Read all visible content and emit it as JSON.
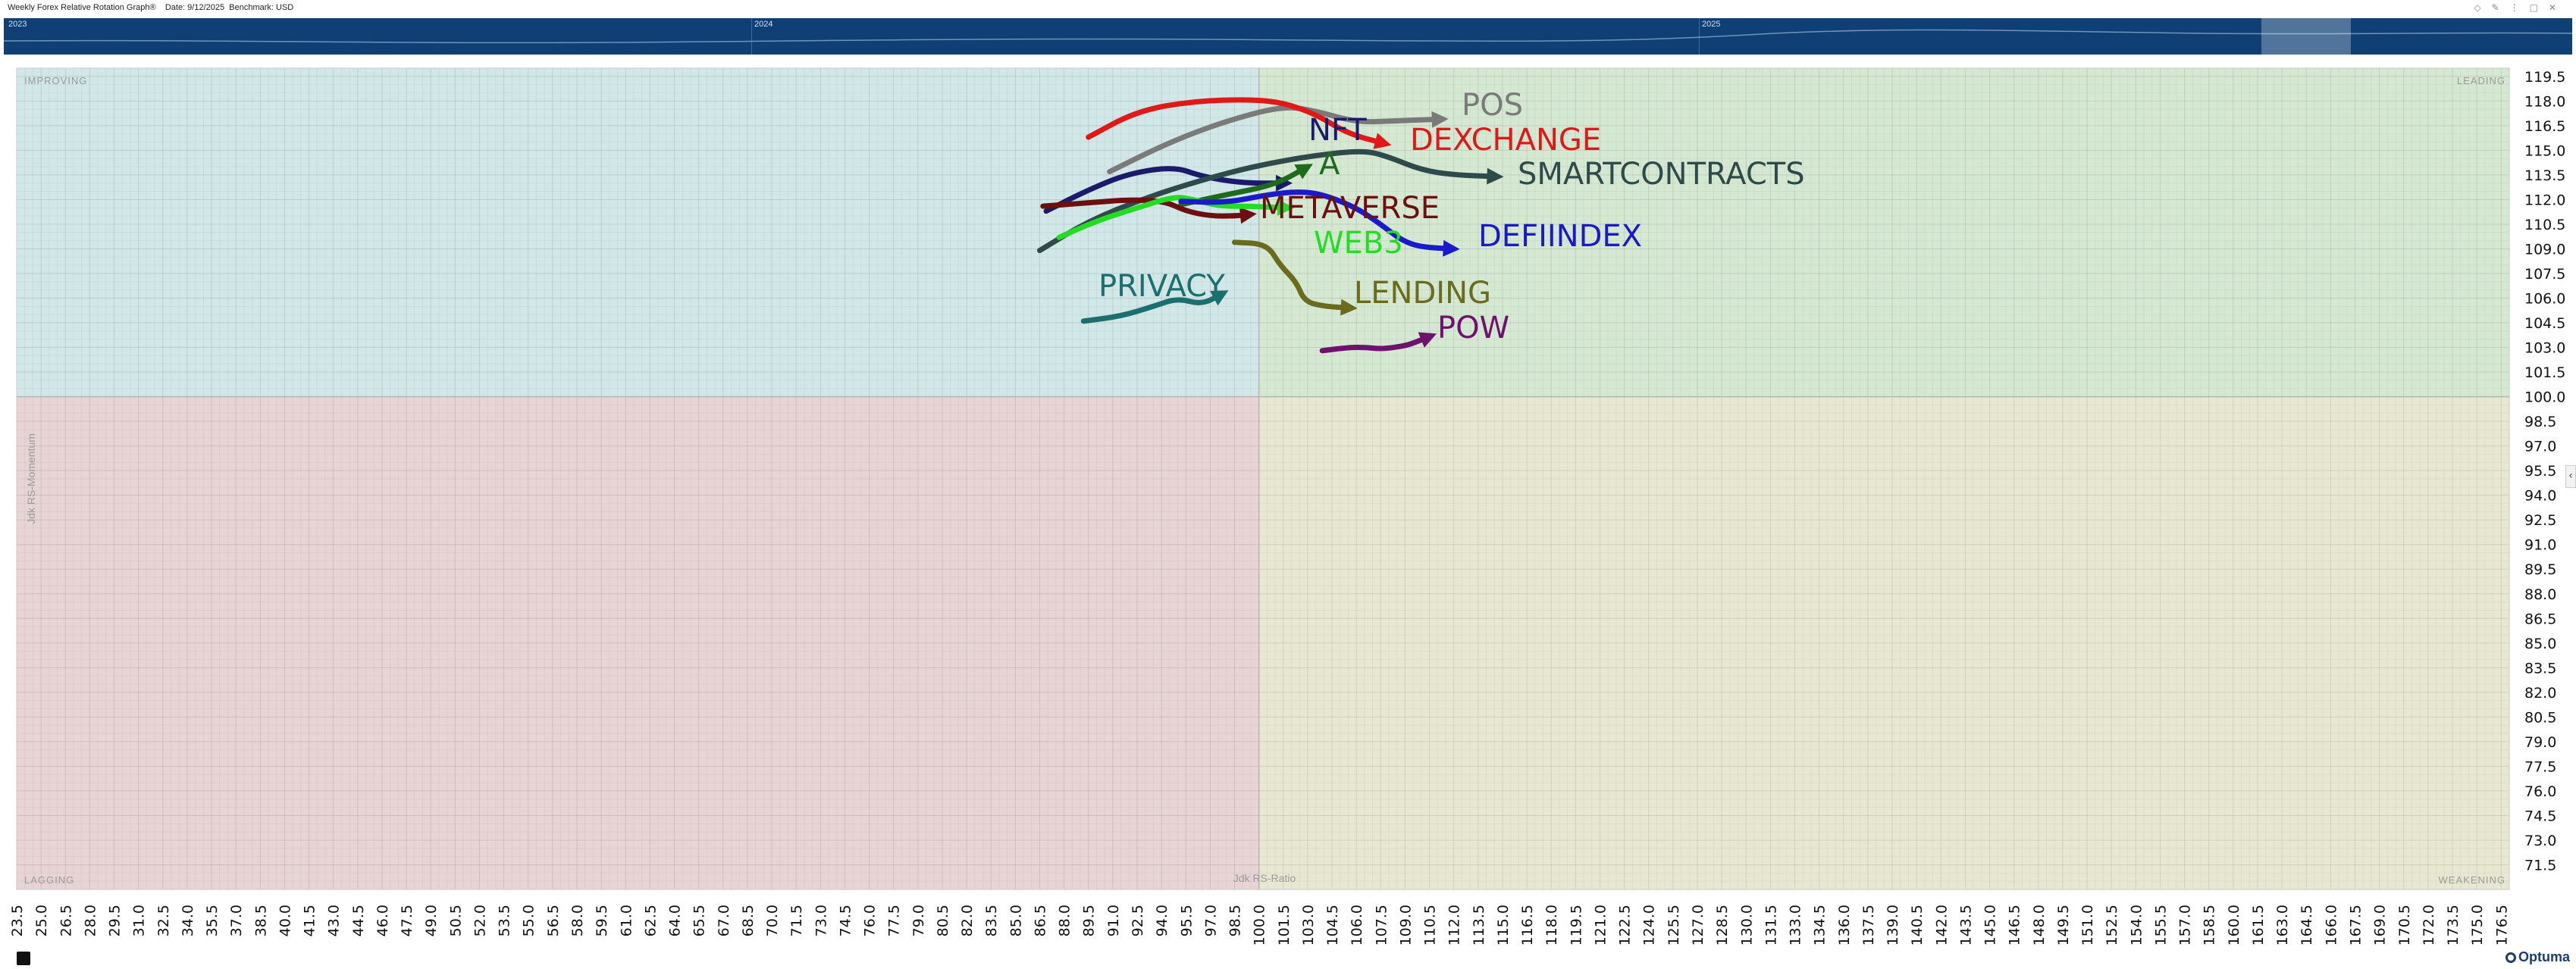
{
  "header": {
    "title": "Weekly Forex Relative Rotation Graph®",
    "date_label": "Date: 9/12/2025",
    "benchmark_label": "Benchmark: USD"
  },
  "navigator": {
    "years": [
      "2023",
      "2024",
      "2025"
    ],
    "background_color": "#0f3f74"
  },
  "logo": {
    "text": "Optuma"
  },
  "chart_data": {
    "type": "scatter",
    "subtype": "relative-rotation-graph",
    "xlabel": "Jdk RS-Ratio",
    "ylabel": "Jdk RS-Momentum",
    "xlim": [
      23.5,
      177.0
    ],
    "ylim": [
      70.0,
      120.0
    ],
    "x_ticks": [
      23.5,
      25.0,
      26.5,
      28.0,
      29.5,
      31.0,
      32.5,
      34.0,
      35.5,
      37.0,
      38.5,
      40.0,
      41.5,
      43.0,
      44.5,
      46.0,
      47.5,
      49.0,
      50.5,
      52.0,
      53.5,
      55.0,
      56.5,
      58.0,
      59.5,
      61.0,
      62.5,
      64.0,
      65.5,
      67.0,
      68.5,
      70.0,
      71.5,
      73.0,
      74.5,
      76.0,
      77.5,
      79.0,
      80.5,
      82.0,
      83.5,
      85.0,
      86.5,
      88.0,
      89.5,
      91.0,
      92.5,
      94.0,
      95.5,
      97.0,
      98.5,
      100.0,
      101.5,
      103.0,
      104.5,
      106.0,
      107.5,
      109.0,
      110.5,
      112.0,
      113.5,
      115.0,
      116.5,
      118.0,
      119.5,
      121.0,
      122.5,
      124.0,
      125.5,
      127.0,
      128.5,
      130.0,
      131.5,
      133.0,
      134.5,
      136.0,
      137.5,
      139.0,
      140.5,
      142.0,
      143.5,
      145.0,
      146.5,
      148.0,
      149.5,
      151.0,
      152.5,
      154.0,
      155.5,
      157.0,
      158.5,
      160.0,
      161.5,
      163.0,
      164.5,
      166.0,
      167.5,
      169.0,
      170.5,
      172.0,
      173.5,
      175.0,
      176.5
    ],
    "y_ticks": [
      119.5,
      118.0,
      116.5,
      115.0,
      113.5,
      112.0,
      110.5,
      109.0,
      107.5,
      106.0,
      104.5,
      103.0,
      101.5,
      100.0,
      98.5,
      97.0,
      95.5,
      94.0,
      92.5,
      91.0,
      89.5,
      88.0,
      86.5,
      85.0,
      83.5,
      82.0,
      80.5,
      79.0,
      77.5,
      76.0,
      74.5,
      73.0,
      71.5
    ],
    "center": [
      100.0,
      100.0
    ],
    "grid": true,
    "quadrants": [
      {
        "name": "IMPROVING",
        "color": "#d2e7e7"
      },
      {
        "name": "LEADING",
        "color": "#d5e8d2"
      },
      {
        "name": "LAGGING",
        "color": "#e8d4d4"
      },
      {
        "name": "WEAKENING",
        "color": "#e8e8d2"
      }
    ],
    "series": [
      {
        "name": "POS",
        "color": "#7a7a7a",
        "points": [
          [
            90.8,
            113.7
          ],
          [
            94.5,
            115.5
          ],
          [
            98.0,
            116.8
          ],
          [
            101.5,
            117.7
          ],
          [
            103.5,
            117.4
          ],
          [
            106.0,
            116.7
          ],
          [
            108.5,
            116.8
          ],
          [
            111.3,
            116.9
          ]
        ]
      },
      {
        "name": "NFT",
        "color": "#1b1b6e",
        "points": [
          [
            86.9,
            111.3
          ],
          [
            89.5,
            112.6
          ],
          [
            92.0,
            113.6
          ],
          [
            94.8,
            114.0
          ],
          [
            96.5,
            113.4
          ],
          [
            99.0,
            113.0
          ],
          [
            101.7,
            113.0
          ]
        ]
      },
      {
        "name": "DEXCHANGE",
        "color": "#e01818",
        "points": [
          [
            89.5,
            115.8
          ],
          [
            92.5,
            117.4
          ],
          [
            96.0,
            118.0
          ],
          [
            99.5,
            118.1
          ],
          [
            101.5,
            117.9
          ],
          [
            103.5,
            117.2
          ],
          [
            105.5,
            116.0
          ],
          [
            107.8,
            115.4
          ]
        ]
      },
      {
        "name": "A",
        "color": "#1e6b1e",
        "points": [
          [
            95.2,
            111.7
          ],
          [
            98.0,
            112.3
          ],
          [
            101.0,
            112.9
          ],
          [
            103.0,
            114.0
          ]
        ]
      },
      {
        "name": "SMARTCONTRACTS",
        "color": "#2f4a4a",
        "points": [
          [
            86.5,
            108.9
          ],
          [
            89.5,
            110.7
          ],
          [
            93.0,
            112.1
          ],
          [
            96.5,
            113.2
          ],
          [
            100.0,
            114.1
          ],
          [
            103.5,
            114.7
          ],
          [
            106.5,
            115.0
          ],
          [
            108.0,
            114.6
          ],
          [
            110.0,
            113.8
          ],
          [
            112.0,
            113.5
          ],
          [
            114.7,
            113.4
          ]
        ]
      },
      {
        "name": "METAVERSE",
        "color": "#6e0f0f",
        "points": [
          [
            86.7,
            111.6
          ],
          [
            89.5,
            111.8
          ],
          [
            92.0,
            112.0
          ],
          [
            94.2,
            111.9
          ],
          [
            95.5,
            111.3
          ],
          [
            97.0,
            111.0
          ],
          [
            98.5,
            111.0
          ],
          [
            99.5,
            111.1
          ]
        ]
      },
      {
        "name": "WEB3",
        "color": "#22dd22",
        "points": [
          [
            87.7,
            109.7
          ],
          [
            90.0,
            110.7
          ],
          [
            92.5,
            111.5
          ],
          [
            94.8,
            112.2
          ],
          [
            96.0,
            112.0
          ],
          [
            97.5,
            111.6
          ],
          [
            99.3,
            111.6
          ],
          [
            101.8,
            111.5
          ]
        ]
      },
      {
        "name": "DEFIINDEX",
        "color": "#1a1acc",
        "points": [
          [
            95.2,
            111.9
          ],
          [
            98.0,
            111.8
          ],
          [
            100.5,
            112.3
          ],
          [
            102.5,
            112.5
          ],
          [
            104.0,
            112.3
          ],
          [
            106.0,
            111.5
          ],
          [
            107.5,
            110.5
          ],
          [
            108.8,
            109.5
          ],
          [
            110.0,
            109.1
          ],
          [
            112.0,
            109.0
          ]
        ]
      },
      {
        "name": "PRIVACY",
        "color": "#1b6f6f",
        "points": [
          [
            89.2,
            104.6
          ],
          [
            91.5,
            104.9
          ],
          [
            93.5,
            105.5
          ],
          [
            95.0,
            106.0
          ],
          [
            96.5,
            105.6
          ],
          [
            97.8,
            106.3
          ]
        ]
      },
      {
        "name": "LENDING",
        "color": "#6b6b1e",
        "points": [
          [
            98.5,
            109.4
          ],
          [
            100.5,
            109.3
          ],
          [
            101.3,
            108.0
          ],
          [
            102.3,
            107.0
          ],
          [
            102.8,
            105.8
          ],
          [
            104.0,
            105.5
          ],
          [
            105.7,
            105.4
          ]
        ]
      },
      {
        "name": "POW",
        "color": "#6e126e",
        "points": [
          [
            103.9,
            102.8
          ],
          [
            105.5,
            103.0
          ],
          [
            106.6,
            103.0
          ],
          [
            107.6,
            102.9
          ],
          [
            109.0,
            103.1
          ],
          [
            109.6,
            103.3
          ],
          [
            110.6,
            103.7
          ]
        ]
      }
    ]
  }
}
